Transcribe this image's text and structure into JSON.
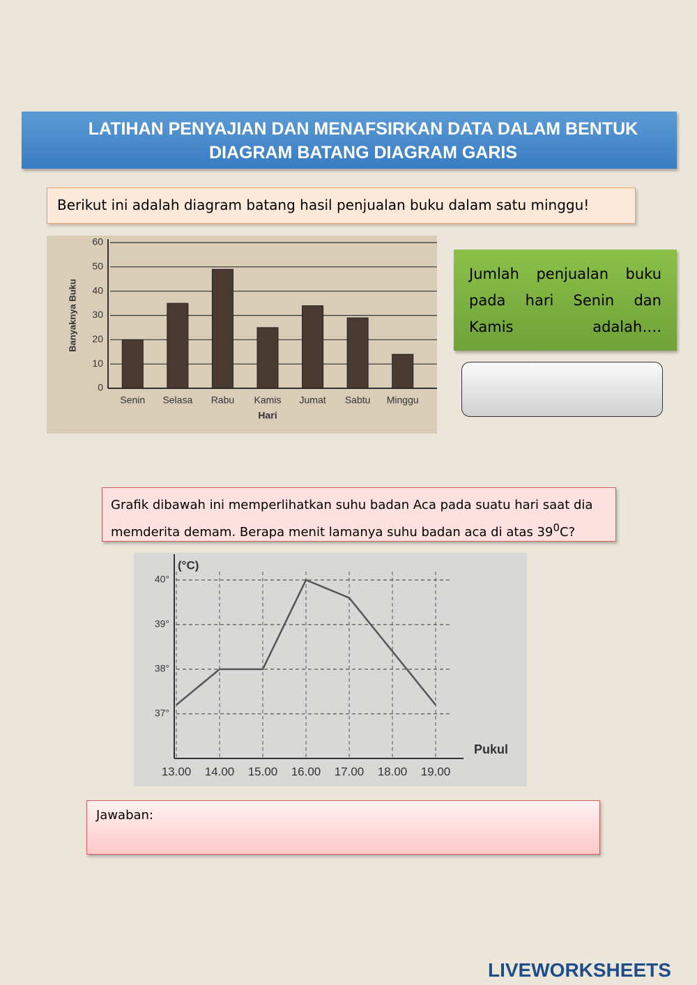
{
  "header": {
    "title": "LATIHAN PENYAJIAN DAN MENAFSIRKAN DATA DALAM BENTUK DIAGRAM BATANG DIAGRAM GARIS"
  },
  "instruction": "Berikut ini adalah diagram batang hasil penjualan buku dalam satu minggu!",
  "question1": "Jumlah penjualan buku pada hari Senin dan Kamis adalah….",
  "question2": {
    "text": "Grafik dibawah ini memperlihatkan suhu badan Aca pada suatu hari saat dia memderita demam. Berapa menit lamanya suhu badan aca di atas 39",
    "sup": "0",
    "after": "C?"
  },
  "answer_label": "Jawaban:",
  "footer": {
    "logo": "LIVEWORKSHEETS"
  },
  "chart_data": [
    {
      "type": "bar",
      "x_label": "Hari",
      "y_label": "Banyaknya Buku",
      "categories": [
        "Senin",
        "Selasa",
        "Rabu",
        "Kamis",
        "Jumat",
        "Sabtu",
        "Minggu"
      ],
      "values": [
        20,
        35,
        49,
        25,
        34,
        29,
        14
      ],
      "color": "#4a3a30",
      "ylim": [
        0,
        60
      ],
      "yticks": [
        0,
        10,
        20,
        30,
        40,
        50,
        60
      ],
      "grid": true
    },
    {
      "type": "line",
      "x_label": "Pukul",
      "y_label": "(°C)",
      "categories": [
        "13.00",
        "14.00",
        "15.00",
        "16.00",
        "17.00",
        "18.00",
        "19.00"
      ],
      "values": [
        37.2,
        38,
        38,
        40,
        39.6,
        38.4,
        37.2
      ],
      "color": "#555555",
      "ylim": [
        36,
        40.5
      ],
      "yticks": [
        {
          "value": 37,
          "label": "37°"
        },
        {
          "value": 38,
          "label": "38°"
        },
        {
          "value": 39,
          "label": "39°"
        },
        {
          "value": 40,
          "label": "40°"
        }
      ],
      "grid": true
    }
  ]
}
